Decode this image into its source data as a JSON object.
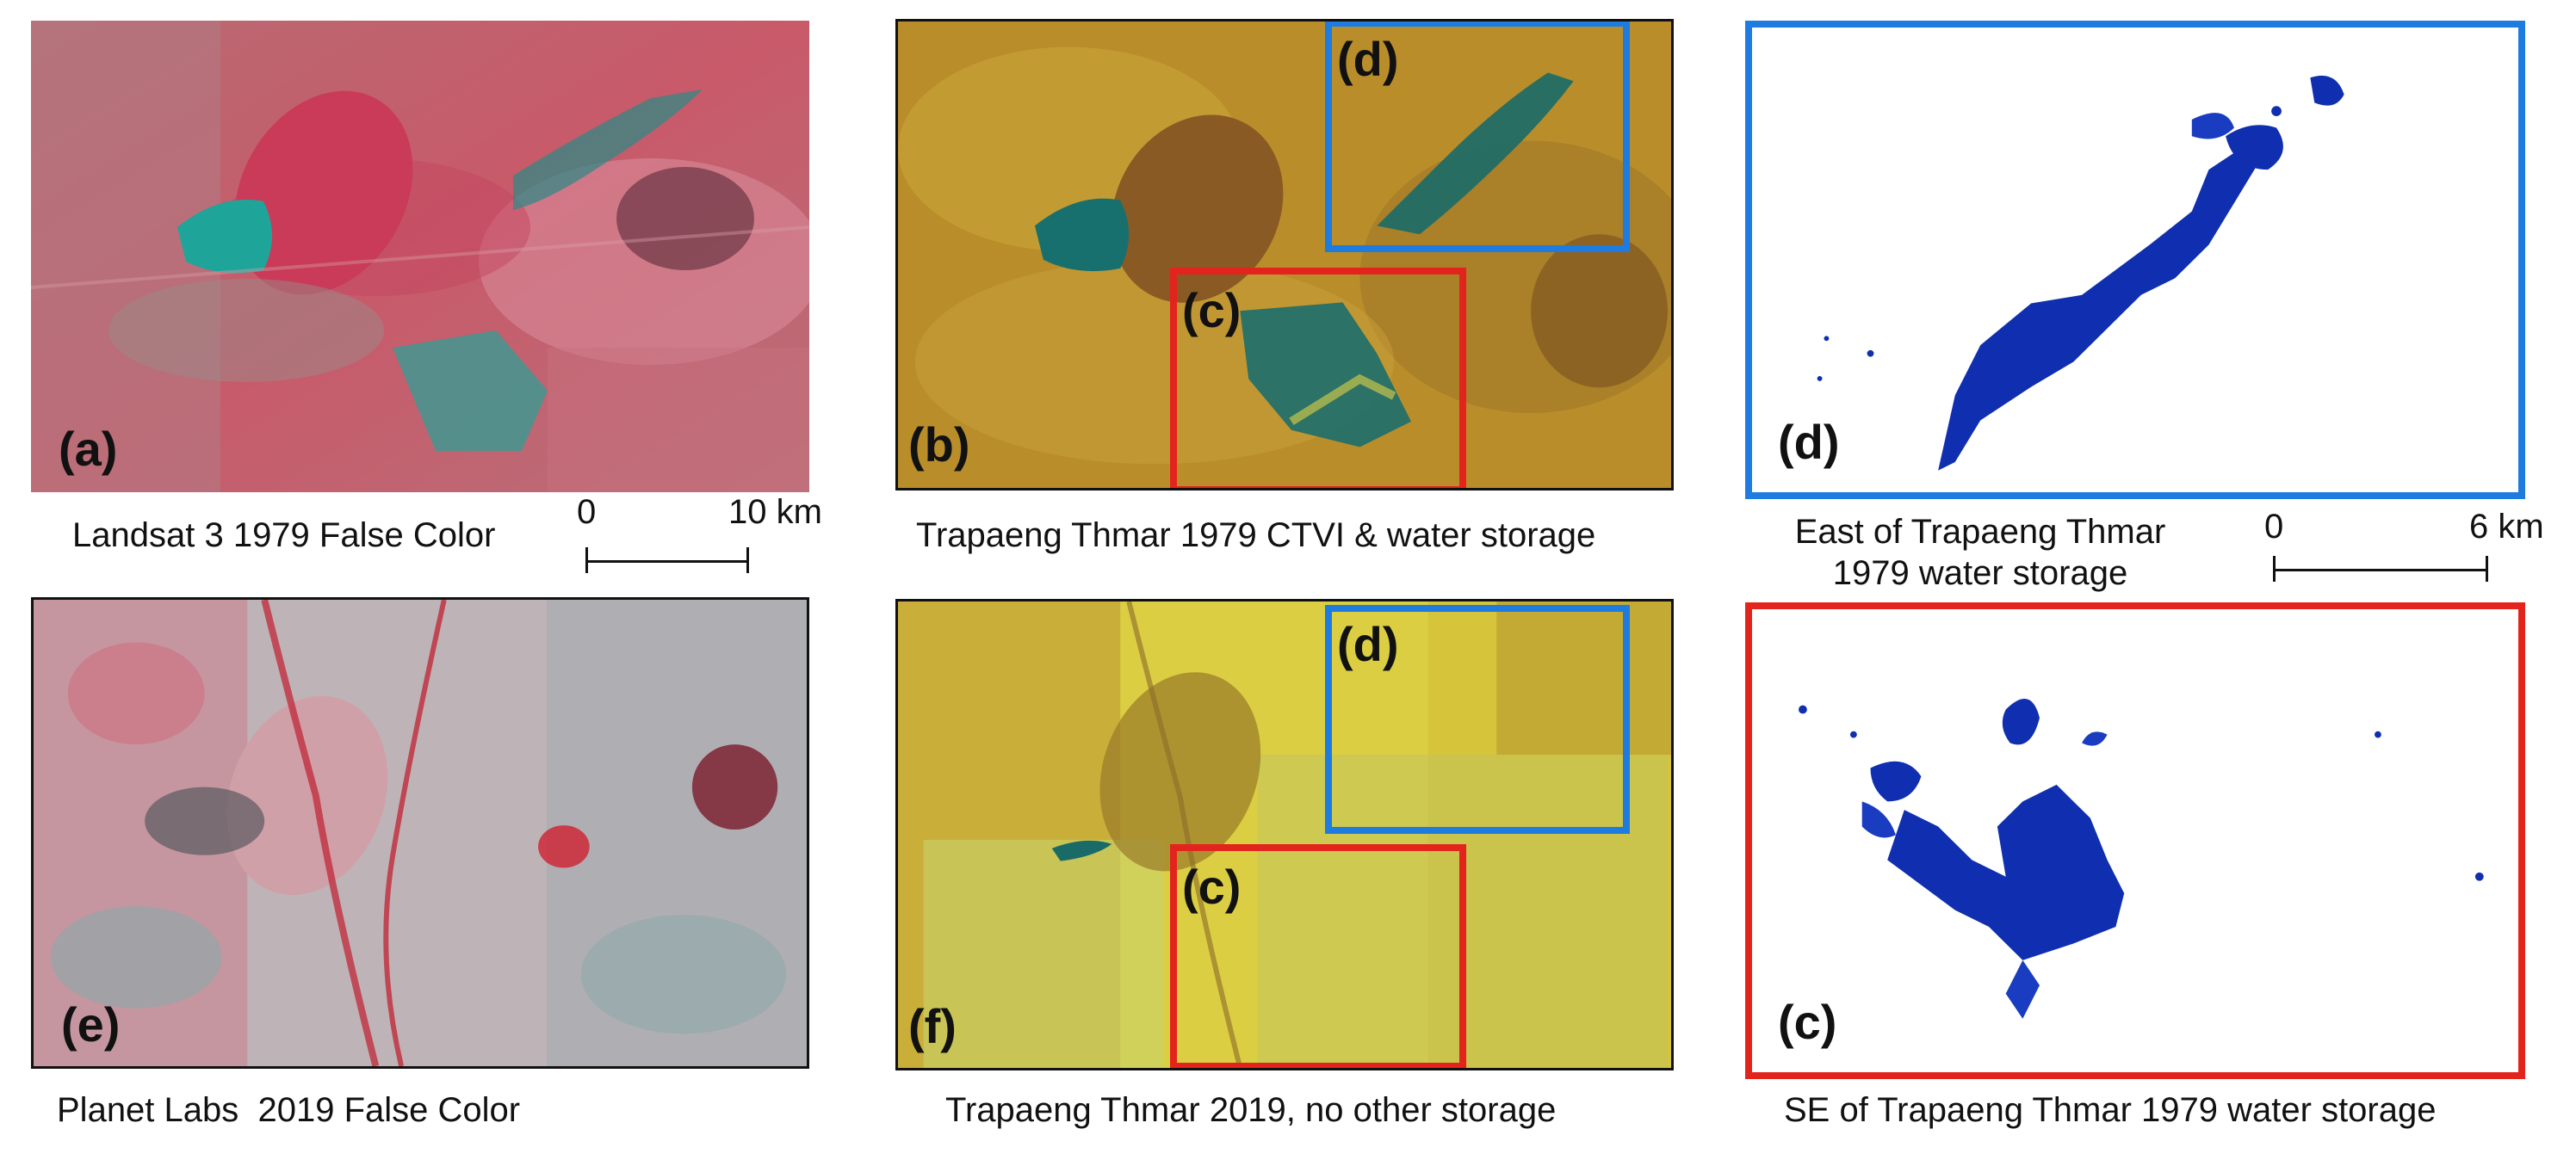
{
  "panels": {
    "a": {
      "label": "(a)",
      "caption": "Landsat 3 1979 False Color"
    },
    "b": {
      "label": "(b)",
      "caption": "Trapaeng Thmar 1979 CTVI & water storage"
    },
    "d_map": {
      "label": "(d)",
      "caption_line1": "East of Trapaeng Thmar",
      "caption_line2": "1979 water storage"
    },
    "e": {
      "label": "(e)",
      "caption": "Planet Labs  2019 False Color"
    },
    "f": {
      "label": "(f)",
      "caption": "Trapaeng Thmar 2019, no other storage"
    },
    "c_map": {
      "label": "(c)",
      "caption": "SE of Trapaeng Thmar 1979 water storage"
    }
  },
  "insets": {
    "b_d": "(d)",
    "b_c": "(c)",
    "f_d": "(d)",
    "f_c": "(c)"
  },
  "scalebar_left": {
    "start": "0",
    "end": "10 km"
  },
  "scalebar_right": {
    "start": "0",
    "end": "6 km"
  },
  "colors": {
    "inset_blue": "#1e7be0",
    "inset_red": "#e3241d",
    "water_blue": "#0f2fb0"
  }
}
